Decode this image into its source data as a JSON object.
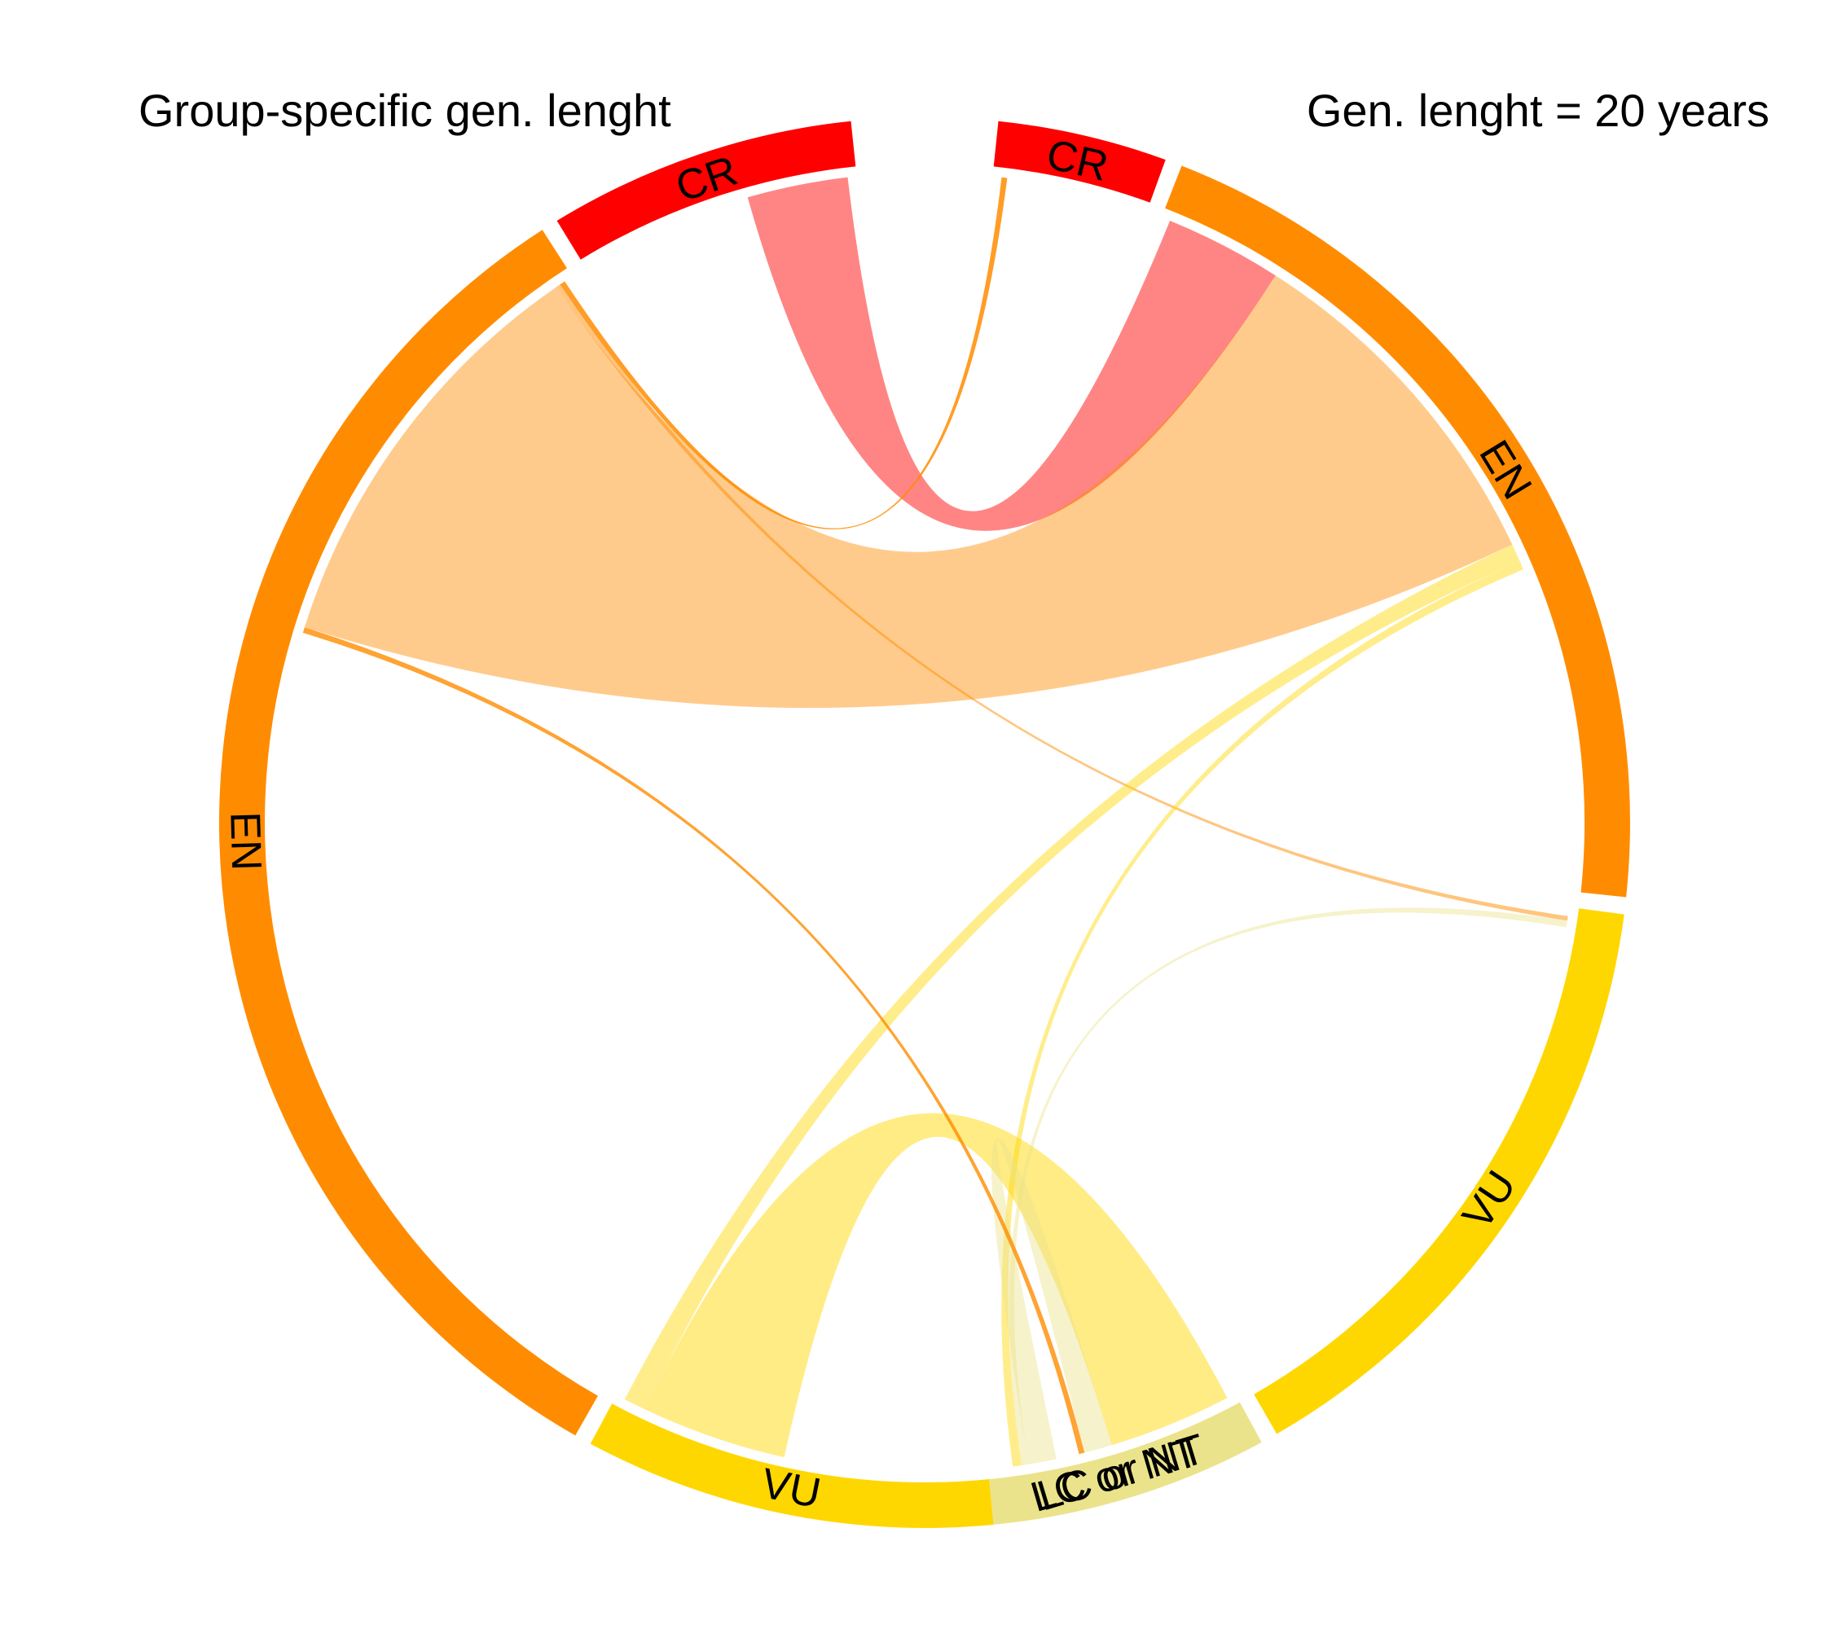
{
  "chart_data": {
    "type": "chord",
    "panels": {
      "left": {
        "title": "Group-specific gen. lenght",
        "segments": [
          {
            "label": "CR",
            "color": "#ff0000",
            "share": 0.0706
          },
          {
            "label": "EN",
            "color": "#ff8c00",
            "share": 0.3264
          },
          {
            "label": "VU",
            "color": "#ffd700",
            "share": 0.0941
          },
          {
            "label": "LC or NT",
            "color": "#ebe38c",
            "share": 0.0514
          }
        ]
      },
      "right": {
        "title": "Gen. lenght = 20 years",
        "segments": [
          {
            "label": "CR",
            "color": "#ff0000",
            "share": 0.0388
          },
          {
            "label": "EN",
            "color": "#ff8c00",
            "share": 0.2075
          },
          {
            "label": "VU",
            "color": "#ffd700",
            "share": 0.1461
          },
          {
            "label": "LC or NT",
            "color": "#ebe38c",
            "share": 0.0651
          }
        ]
      }
    },
    "flows": [
      {
        "from": "left:CR",
        "to": "right:EN",
        "color": "#ff0000",
        "opacity": 0.48
      },
      {
        "from": "left:EN",
        "to": "right:CR",
        "color": "#ff8c00",
        "opacity": 0.85
      },
      {
        "from": "left:EN",
        "to": "right:VU",
        "color": "#ff8c00",
        "opacity": 0.5
      },
      {
        "from": "left:EN",
        "to": "right:EN",
        "color": "#ff8c00",
        "opacity": 0.45
      },
      {
        "from": "left:VU",
        "to": "right:EN",
        "color": "#ffd700",
        "opacity": 0.45
      },
      {
        "from": "left:VU",
        "to": "right:LC or NT",
        "color": "#ffd700",
        "opacity": 0.48
      },
      {
        "from": "left:LC or NT",
        "to": "right:EN",
        "color": "#ffd700",
        "opacity": 0.45
      },
      {
        "from": "left:LC or NT",
        "to": "right:VU",
        "color": "#ebe38c",
        "opacity": 0.45
      },
      {
        "from": "left:LC or NT",
        "to": "right:LC or NT",
        "color": "#ebe38c",
        "opacity": 0.45
      },
      {
        "from": "left:EN",
        "to": "right:LC or NT",
        "color": "#ff8c00",
        "opacity": 0.8
      }
    ]
  }
}
